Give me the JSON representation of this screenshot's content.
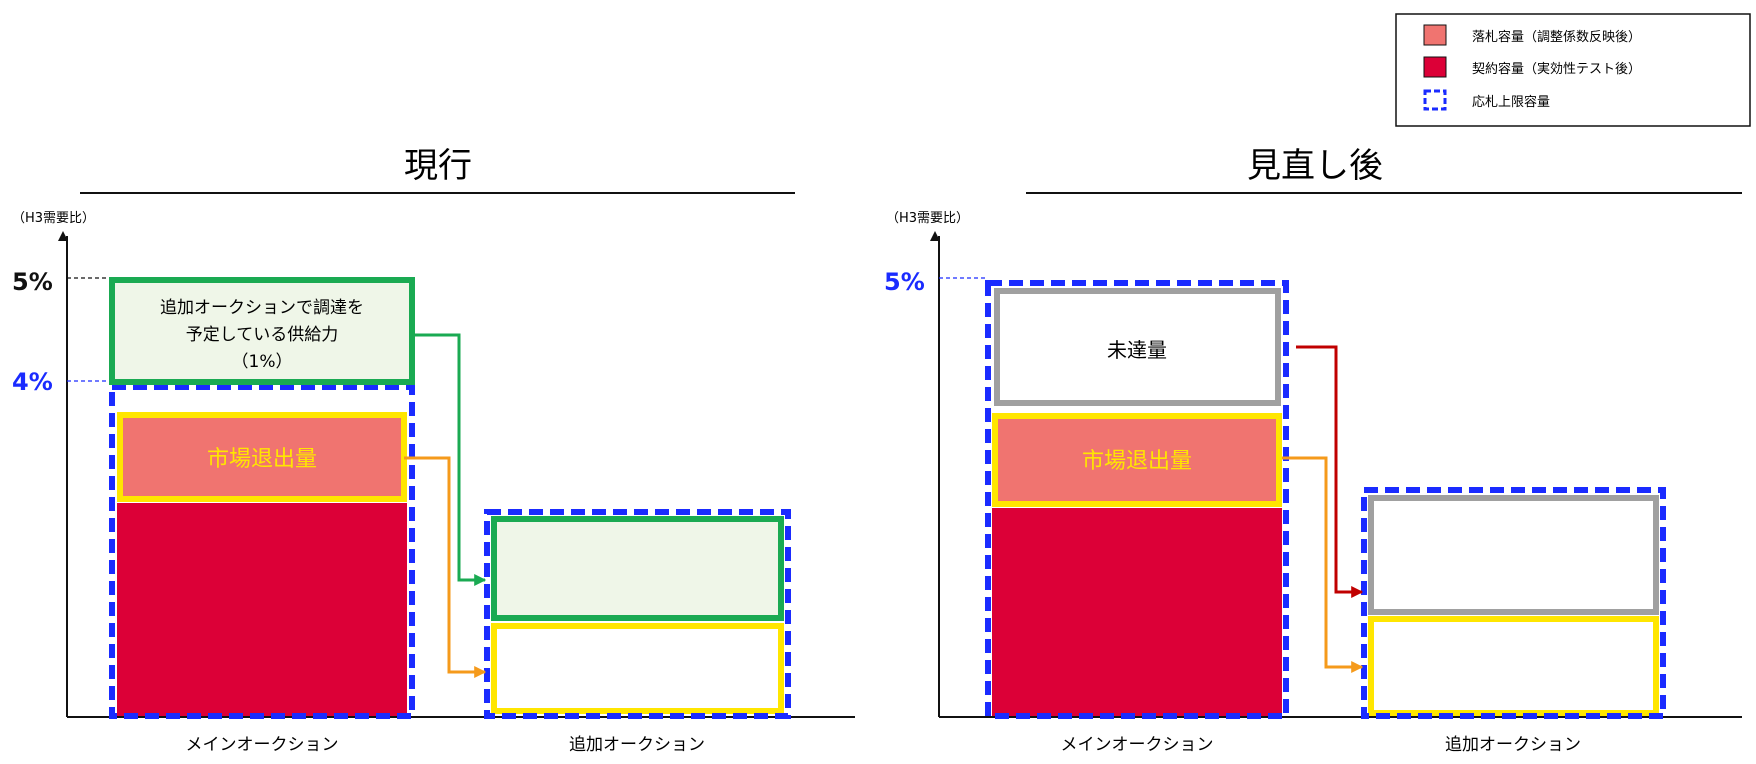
{
  "legend": {
    "items": [
      {
        "label": "落札容量（調整係数反映後）",
        "color": "#f07470"
      },
      {
        "label": "契約容量（実効性テスト後）",
        "color": "#dc0037"
      },
      {
        "label": "応札上限容量",
        "color": "#1a2bff"
      }
    ]
  },
  "colors": {
    "awarded": "#f07470",
    "contracted": "#dc0037",
    "upper_limit_border": "#1a2bff",
    "planned_border": "#1aaa52",
    "planned_fill": "#eff6e8",
    "exit_border": "#ffe600",
    "exit_text": "#ffe600",
    "shortfall_border": "#a0a0a0",
    "arrow_green": "#1aaa52",
    "arrow_orange": "#f59a1b",
    "arrow_red": "#c00000"
  },
  "panels": [
    {
      "title": "現行",
      "unit_label": "（H3需要比）",
      "y_ticks": [
        "5%",
        "4%"
      ],
      "planned_box_lines": [
        "追加オークションで調達を",
        "予定している供給力",
        "（1%）"
      ],
      "market_exit_label": "市場退出量",
      "x_labels": [
        "メインオークション",
        "追加オークション"
      ]
    },
    {
      "title": "見直し後",
      "unit_label": "（H3需要比）",
      "y_ticks": [
        "5%"
      ],
      "shortfall_label": "未達量",
      "market_exit_label": "市場退出量",
      "x_labels": [
        "メインオークション",
        "追加オークション"
      ]
    }
  ]
}
